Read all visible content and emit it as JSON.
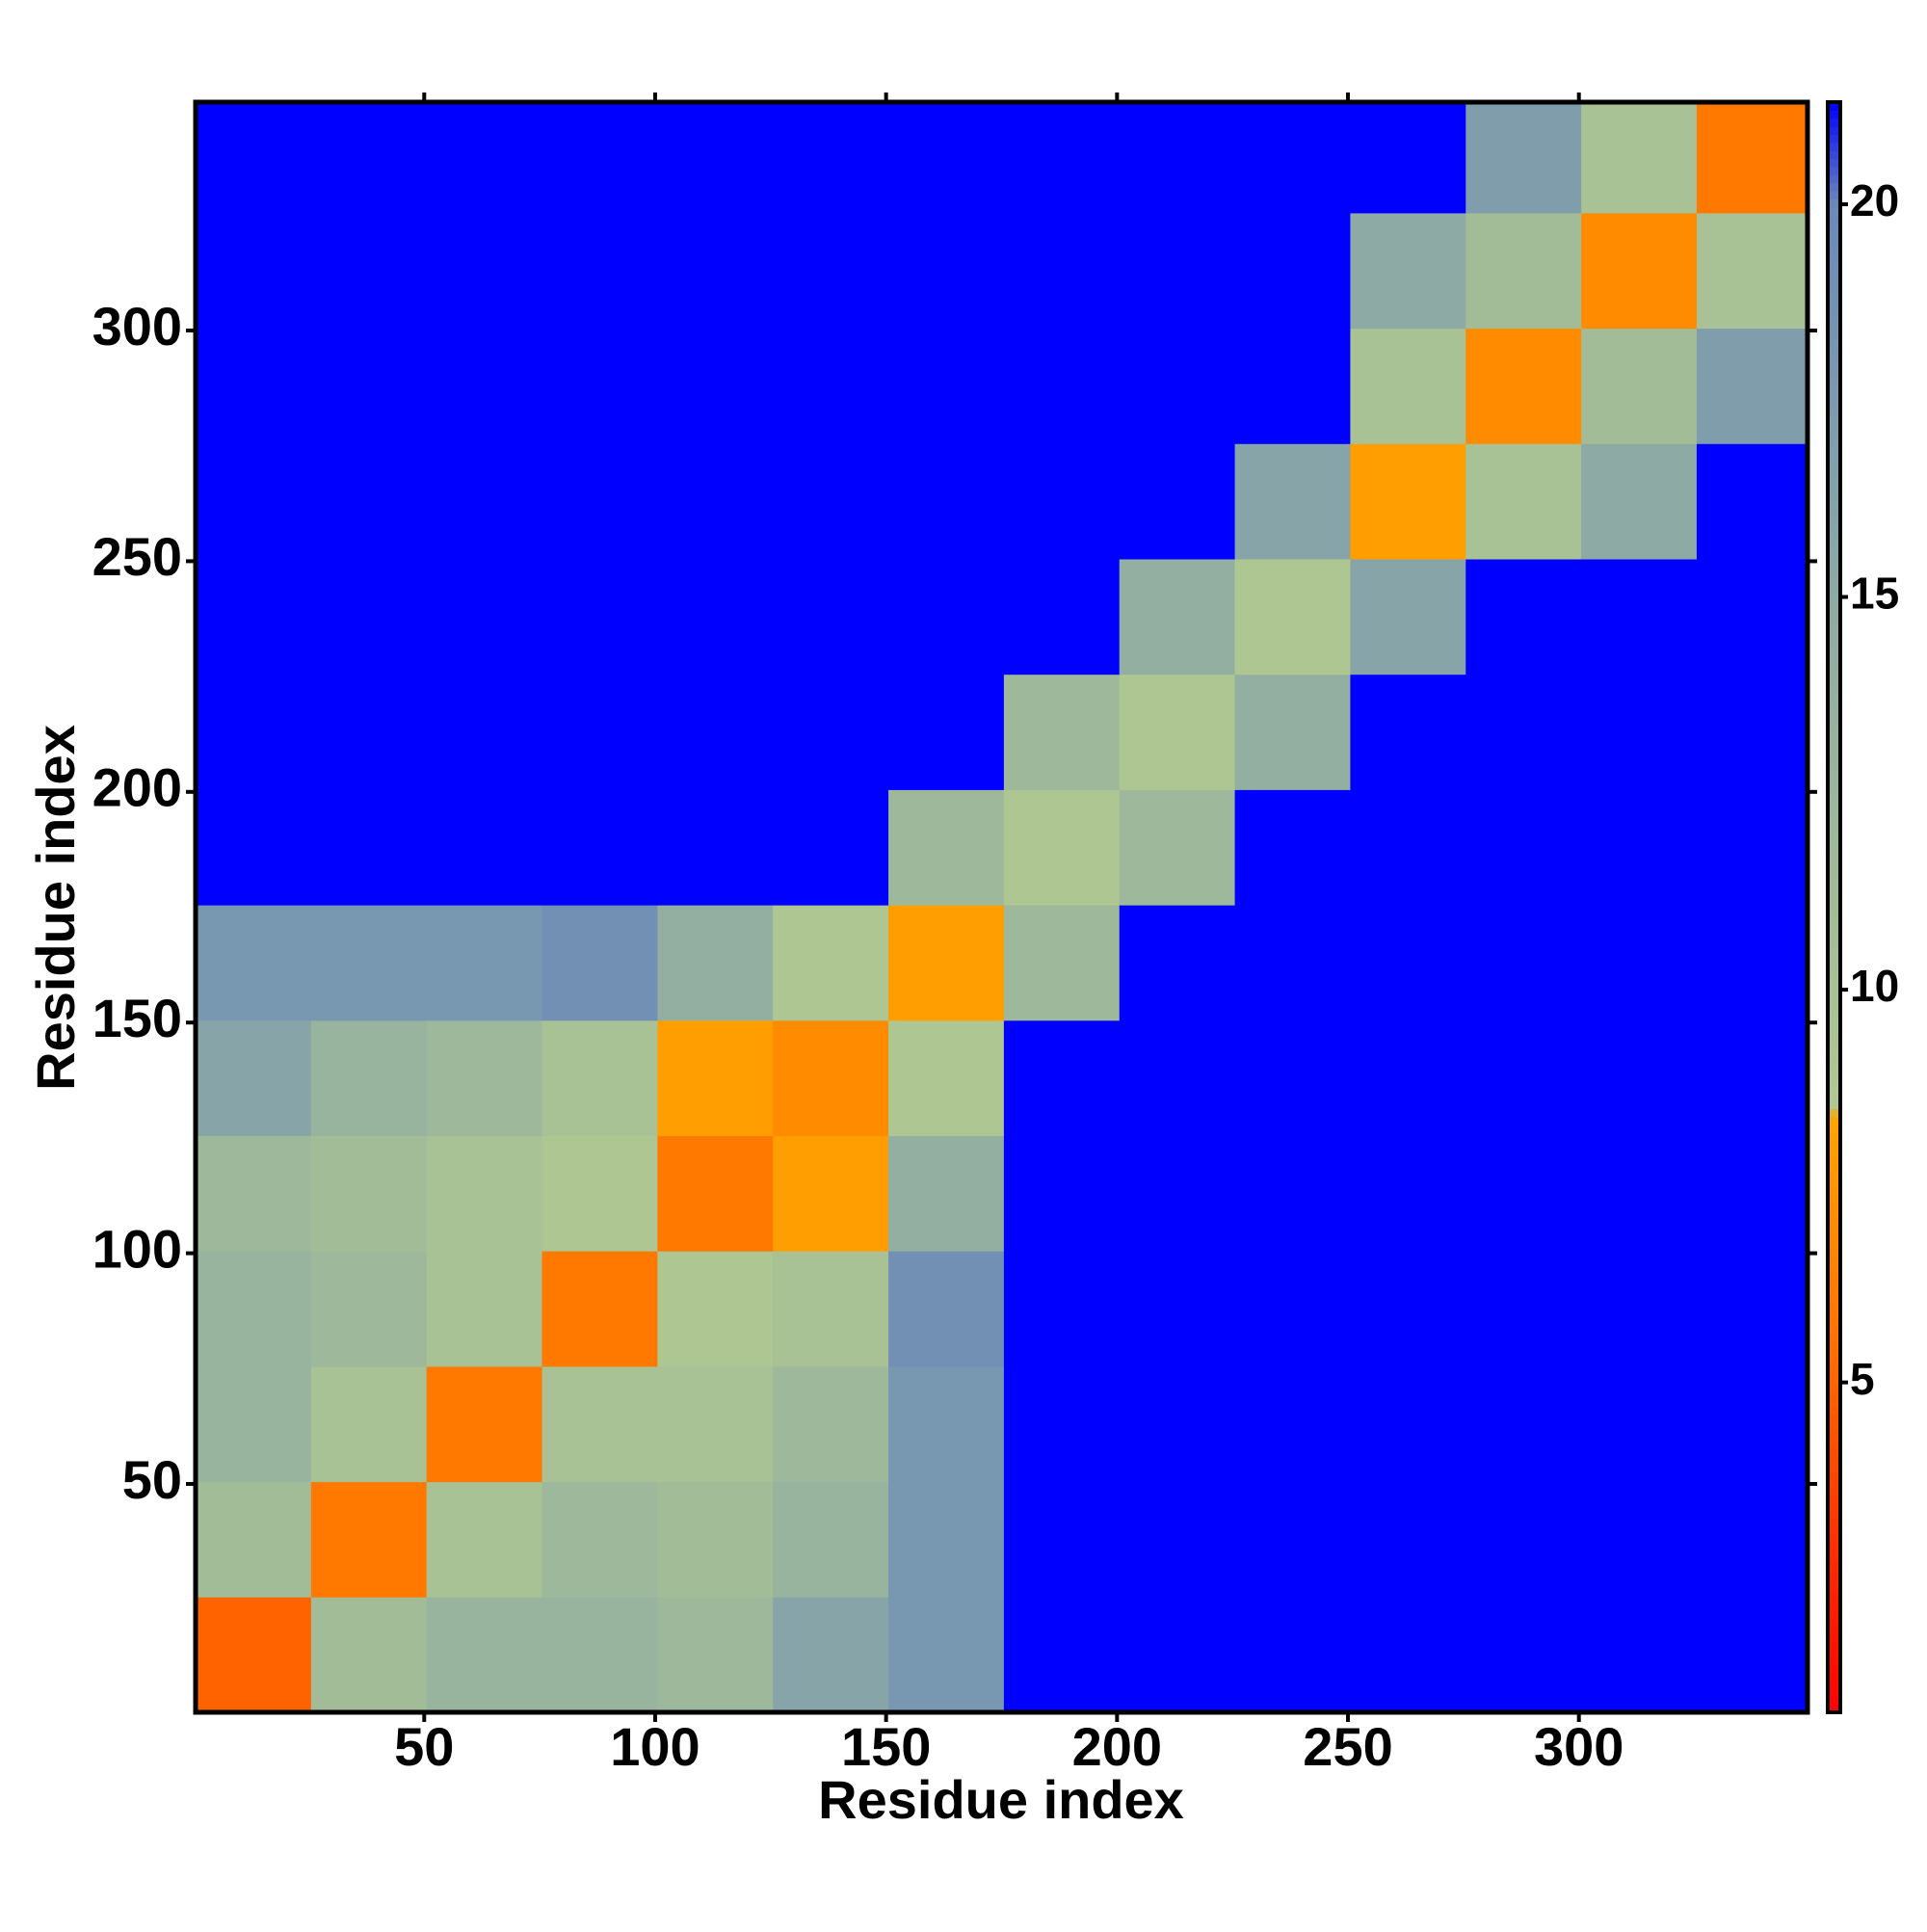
{
  "chart_data": {
    "type": "heatmap",
    "xlabel": "Residue index",
    "ylabel": "Residue index",
    "xlim": [
      0.5,
      349.5
    ],
    "ylim": [
      0.5,
      349.5
    ],
    "xticks": [
      50,
      100,
      150,
      200,
      250,
      300
    ],
    "yticks": [
      50,
      100,
      150,
      200,
      250,
      300
    ],
    "x_edges": [
      0.5,
      25.5,
      50.5,
      75.5,
      100.5,
      125.5,
      150.5,
      175.5,
      200.5,
      225.5,
      250.5,
      275.5,
      300.5,
      325.5,
      349.5
    ],
    "y_edges": [
      0.5,
      25.5,
      50.5,
      75.5,
      100.5,
      125.5,
      150.5,
      175.5,
      200.5,
      225.5,
      250.5,
      275.5,
      300.5,
      325.5,
      349.5
    ],
    "z": [
      [
        5,
        11,
        13,
        13,
        12,
        16,
        18,
        21.3,
        21.3,
        21.3,
        21.3,
        21.3,
        21.3,
        21.3
      ],
      [
        11,
        6,
        10,
        12,
        11,
        13,
        18,
        21.3,
        21.3,
        21.3,
        21.3,
        21.3,
        21.3,
        21.3
      ],
      [
        13,
        10,
        6,
        10,
        10,
        12,
        18,
        21.3,
        21.3,
        21.3,
        21.3,
        21.3,
        21.3,
        21.3
      ],
      [
        13,
        12,
        10,
        6,
        9,
        10,
        19,
        21.3,
        21.3,
        21.3,
        21.3,
        21.3,
        21.3,
        21.3
      ],
      [
        12,
        11,
        10,
        9,
        6,
        8,
        14,
        21.3,
        21.3,
        21.3,
        21.3,
        21.3,
        21.3,
        21.3
      ],
      [
        16,
        13,
        12,
        10,
        8,
        7,
        9,
        21.3,
        21.3,
        21.3,
        21.3,
        21.3,
        21.3,
        21.3
      ],
      [
        18,
        18,
        18,
        19,
        14,
        9,
        8,
        12,
        21.3,
        21.3,
        21.3,
        21.3,
        21.3,
        21.3
      ],
      [
        21.3,
        21.3,
        21.3,
        21.3,
        21.3,
        21.3,
        12,
        9,
        12,
        21.3,
        21.3,
        21.3,
        21.3,
        21.3
      ],
      [
        21.3,
        21.3,
        21.3,
        21.3,
        21.3,
        21.3,
        21.3,
        12,
        9,
        14,
        21.3,
        21.3,
        21.3,
        21.3
      ],
      [
        21.3,
        21.3,
        21.3,
        21.3,
        21.3,
        21.3,
        21.3,
        21.3,
        14,
        9,
        16,
        21.3,
        21.3,
        21.3
      ],
      [
        21.3,
        21.3,
        21.3,
        21.3,
        21.3,
        21.3,
        21.3,
        21.3,
        21.3,
        16,
        8,
        10,
        15,
        21.3
      ],
      [
        21.3,
        21.3,
        21.3,
        21.3,
        21.3,
        21.3,
        21.3,
        21.3,
        21.3,
        21.3,
        10,
        7,
        11,
        17
      ],
      [
        21.3,
        21.3,
        21.3,
        21.3,
        21.3,
        21.3,
        21.3,
        21.3,
        21.3,
        21.3,
        15,
        11,
        7,
        10
      ],
      [
        21.3,
        21.3,
        21.3,
        21.3,
        21.3,
        21.3,
        21.3,
        21.3,
        21.3,
        21.3,
        21.3,
        17,
        10,
        6
      ]
    ],
    "zlim": [
      0.8,
      21.3
    ],
    "zticks": [
      5,
      10,
      15,
      20
    ],
    "colorscale": [
      [
        0.8,
        "#ff0000"
      ],
      [
        3,
        "#ff3000"
      ],
      [
        5.5,
        "#ff7000"
      ],
      [
        8.4,
        "#ffa500"
      ],
      [
        8.5,
        "#b0c890"
      ],
      [
        15,
        "#8eaaa4"
      ],
      [
        20,
        "#6a8ab8"
      ],
      [
        21.3,
        "#0000ff"
      ]
    ]
  }
}
